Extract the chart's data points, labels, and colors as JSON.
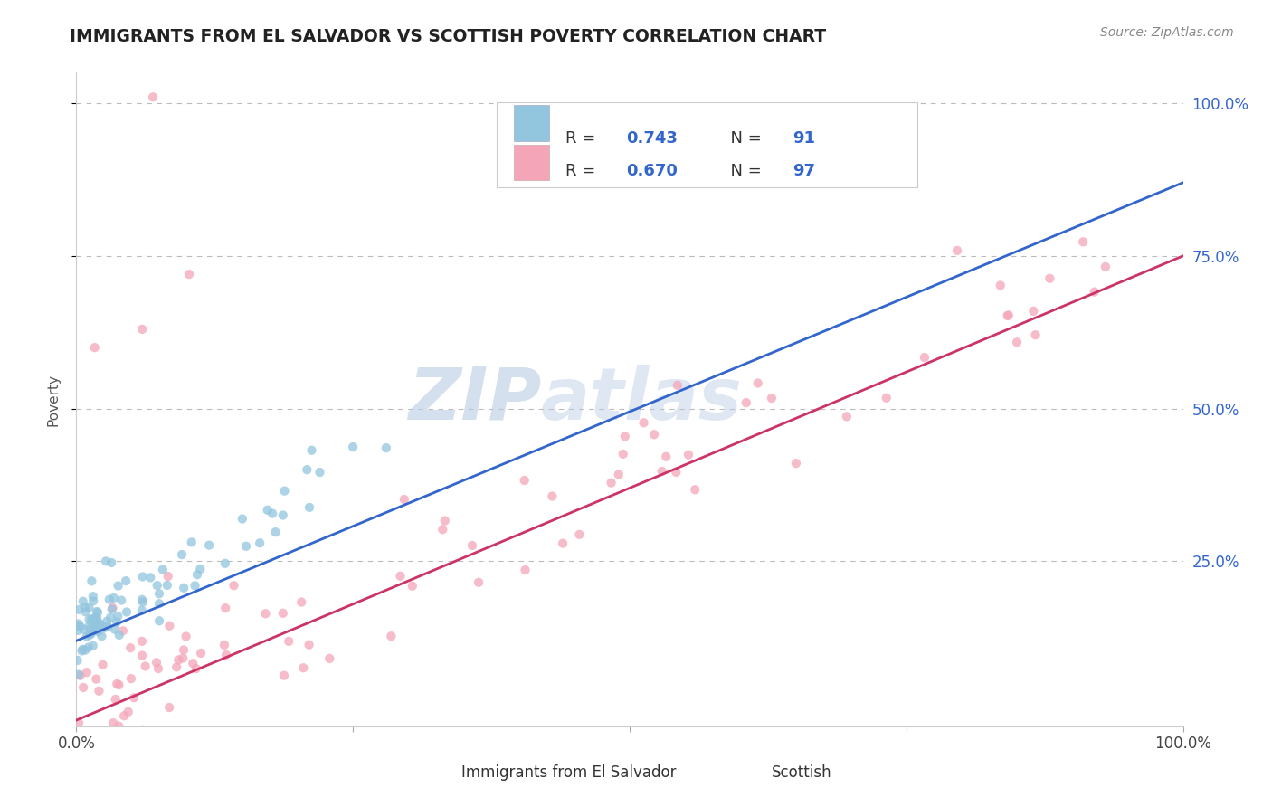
{
  "title": "IMMIGRANTS FROM EL SALVADOR VS SCOTTISH POVERTY CORRELATION CHART",
  "source": "Source: ZipAtlas.com",
  "ylabel": "Poverty",
  "xlim": [
    0.0,
    1.0
  ],
  "ylim": [
    -0.02,
    1.05
  ],
  "blue_R": 0.743,
  "blue_N": 91,
  "pink_R": 0.67,
  "pink_N": 97,
  "blue_color": "#92c5de",
  "pink_color": "#f4a6b8",
  "blue_line_color": "#3366cc",
  "pink_line_color": "#cc3366",
  "blue_label": "Immigrants from El Salvador",
  "pink_label": "Scottish",
  "watermark_zip": "ZIP",
  "watermark_atlas": "atlas",
  "background_color": "#ffffff",
  "grid_color": "#bbbbbb",
  "title_color": "#222222",
  "legend_color": "#3366cc",
  "right_tick_color": "#3366cc"
}
